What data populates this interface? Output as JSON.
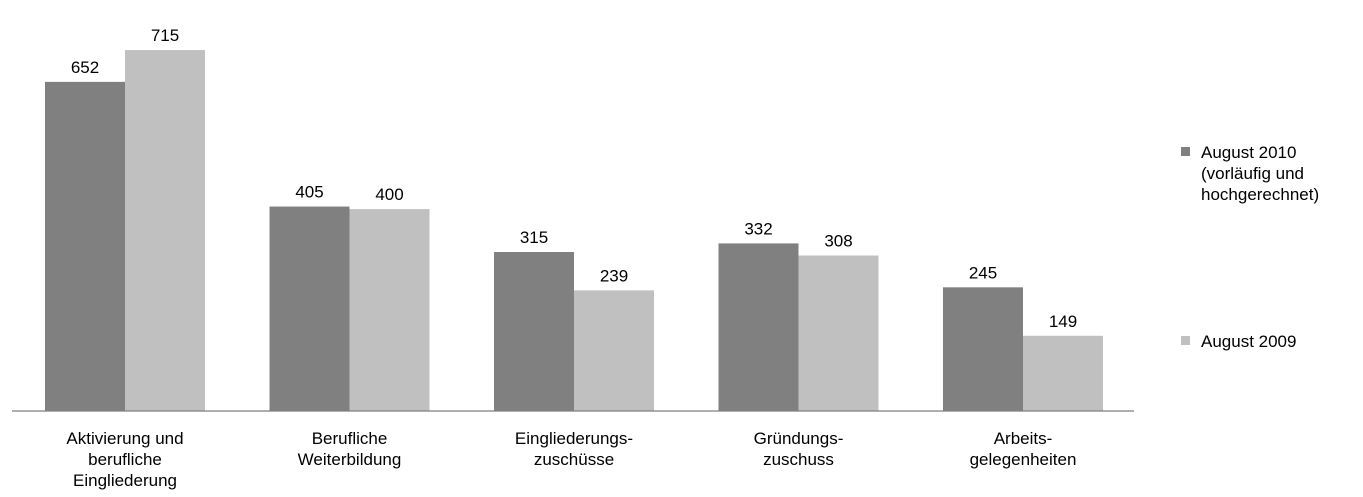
{
  "chart_data": {
    "type": "bar",
    "categories": [
      [
        "Aktivierung und",
        "berufliche",
        "Eingliederung"
      ],
      [
        "Berufliche",
        "Weiterbildung"
      ],
      [
        "Eingliederungs-",
        "zuschüsse"
      ],
      [
        "Gründungs-",
        "zuschuss"
      ],
      [
        "Arbeits-",
        "gelegenheiten"
      ]
    ],
    "series": [
      {
        "name": [
          "August 2010",
          "(vorläufig und",
          "hochgerechnet)"
        ],
        "color": "#808080",
        "values": [
          652,
          405,
          315,
          332,
          245
        ]
      },
      {
        "name": [
          "August 2009"
        ],
        "color": "#c0c0c0",
        "values": [
          715,
          400,
          239,
          308,
          149
        ]
      }
    ],
    "ylim": [
      0,
      750
    ],
    "grid": false,
    "legend_position": "right"
  }
}
